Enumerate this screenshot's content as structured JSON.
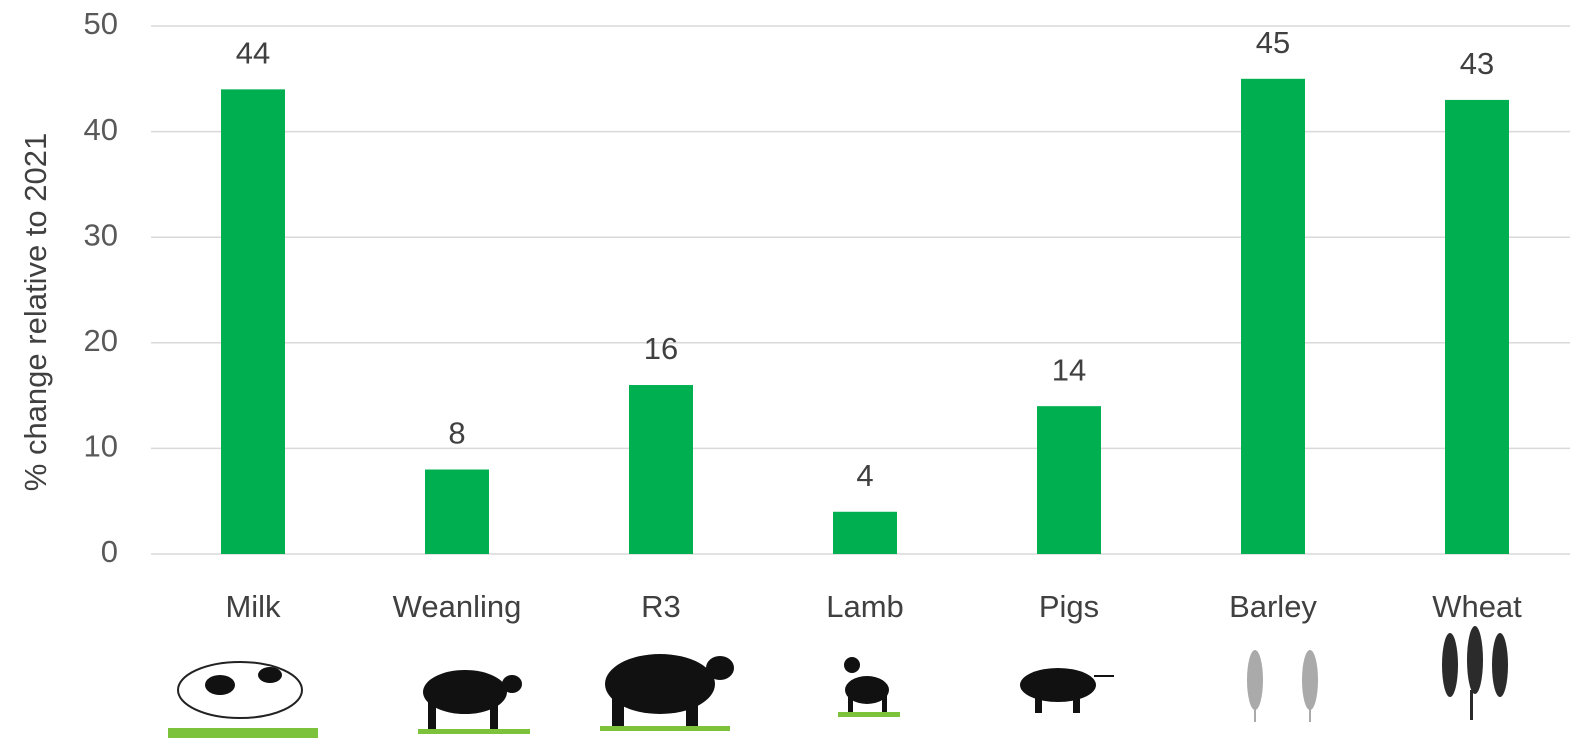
{
  "chart_data": {
    "type": "bar",
    "y_label": "% change relative to 2021",
    "categories": [
      "Milk",
      "Weanling",
      "R3",
      "Lamb",
      "Pigs",
      "Barley",
      "Wheat"
    ],
    "values": [
      44,
      8,
      16,
      4,
      14,
      45,
      43
    ],
    "color": "#00b050",
    "ylim": [
      0,
      50
    ],
    "yticks": [
      0,
      10,
      20,
      30,
      40,
      50
    ],
    "grid": true
  }
}
